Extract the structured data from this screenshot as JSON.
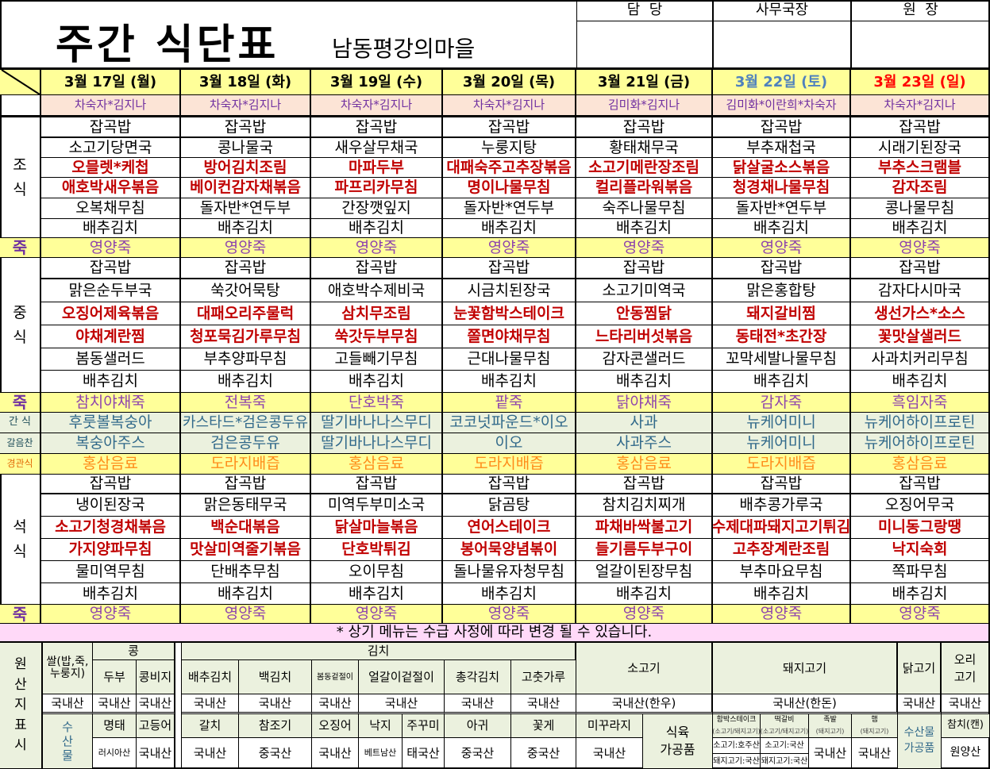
{
  "header": {
    "title": "주간 식단표",
    "subtitle": "남동평강의마을"
  },
  "approval": [
    "담  당",
    "사무국장",
    "원  장"
  ],
  "days": [
    {
      "date": "3월 17일 (월)",
      "staff": "차숙자*김지나"
    },
    {
      "date": "3월 18일 (화)",
      "staff": "차숙자*김지나"
    },
    {
      "date": "3월 19일 (수)",
      "staff": "차숙자*김지나"
    },
    {
      "date": "3월 20일 (목)",
      "staff": "차숙자*김지나"
    },
    {
      "date": "3월 21일 (금)",
      "staff": "김미화*김지나"
    },
    {
      "date": "3월 22일 (토)",
      "staff": "김미화*이란희*차숙자"
    },
    {
      "date": "3월 23일 (일)",
      "staff": "차숙자*김지나"
    }
  ],
  "colors": {
    "saturday": "#4f81bd",
    "sunday": "#ff0000",
    "main_dish": "#c00000",
    "staff": "#7030a0"
  },
  "labels": {
    "breakfast": "조\n식",
    "lunch": "중\n식",
    "dinner": "석\n식",
    "porridge": "죽",
    "snack": "간 식",
    "side": "갈음찬",
    "tube": "경관식"
  },
  "breakfast": [
    [
      "잡곡밥",
      "잡곡밥",
      "잡곡밥",
      "잡곡밥",
      "잡곡밥",
      "잡곡밥",
      "잡곡밥"
    ],
    [
      "소고기당면국",
      "콩나물국",
      "새우살무채국",
      "누룽지탕",
      "황태채무국",
      "부추재첩국",
      "시래기된장국"
    ],
    [
      "오믈렛*케첩",
      "방어김치조림",
      "마파두부",
      "대패숙주고추장볶음",
      "소고기메란장조림",
      "닭살굴소스볶음",
      "부추스크램블"
    ],
    [
      "애호박새우볶음",
      "베이컨감자채볶음",
      "파프리카무침",
      "명이나물무침",
      "컬리플라워볶음",
      "청경채나물무침",
      "감자조림"
    ],
    [
      "오복채무침",
      "돌자반*연두부",
      "간장깻잎지",
      "돌자반*연두부",
      "숙주나물무침",
      "돌자반*연두부",
      "콩나물무침"
    ],
    [
      "배추김치",
      "배추김치",
      "배추김치",
      "배추김치",
      "배추김치",
      "배추김치",
      "배추김치"
    ]
  ],
  "breakfast_porridge": [
    "영양죽",
    "영양죽",
    "영양죽",
    "영양죽",
    "영양죽",
    "영양죽",
    "영양죽"
  ],
  "lunch": [
    [
      "잡곡밥",
      "잡곡밥",
      "잡곡밥",
      "잡곡밥",
      "잡곡밥",
      "잡곡밥",
      "잡곡밥"
    ],
    [
      "맑은순두부국",
      "쑥갓어묵탕",
      "애호박수제비국",
      "시금치된장국",
      "소고기미역국",
      "맑은홍합탕",
      "감자다시마국"
    ],
    [
      "오징어제육볶음",
      "대패오리주물럭",
      "삼치무조림",
      "눈꽃함박스테이크",
      "안동찜닭",
      "돼지갈비찜",
      "생선가스*소스"
    ],
    [
      "야채계란찜",
      "청포묵김가루무침",
      "쑥갓두부무침",
      "쫄면야채무침",
      "느타리버섯볶음",
      "동태전*초간장",
      "꽃맛살샐러드"
    ],
    [
      "봄동샐러드",
      "부추양파무침",
      "고들빼기무침",
      "근대나물무침",
      "감자콘샐러드",
      "꼬막세발나물무침",
      "사과치커리무침"
    ],
    [
      "배추김치",
      "배추김치",
      "배추김치",
      "배추김치",
      "배추김치",
      "배추김치",
      "배추김치"
    ]
  ],
  "lunch_porridge": [
    "참치야채죽",
    "전복죽",
    "단호박죽",
    "팥죽",
    "닭야채죽",
    "감자죽",
    "흑임자죽"
  ],
  "snack": [
    "후룻볼복숭아",
    "카스타드*검은콩두유",
    "딸기바나나스무디",
    "코코넛파운드*이오",
    "사과",
    "뉴케어미니",
    "뉴케어하이프로틴"
  ],
  "side": [
    "복숭아주스",
    "검은콩두유",
    "딸기바나나스무디",
    "이오",
    "사과주스",
    "뉴케어미니",
    "뉴케어하이프로틴"
  ],
  "tube": [
    "홍삼음료",
    "도라지배즙",
    "홍삼음료",
    "도라지배즙",
    "홍삼음료",
    "도라지배즙",
    "홍삼음료"
  ],
  "dinner": [
    [
      "잡곡밥",
      "잡곡밥",
      "잡곡밥",
      "잡곡밥",
      "잡곡밥",
      "잡곡밥",
      "잡곡밥"
    ],
    [
      "냉이된장국",
      "맑은동태무국",
      "미역두부미소국",
      "닭곰탕",
      "참치김치찌개",
      "배추콩가루국",
      "오징어무국"
    ],
    [
      "소고기청경채볶음",
      "백순대볶음",
      "닭살마늘볶음",
      "연어스테이크",
      "파채바싹불고기",
      "수제대파돼지고기튀김",
      "미니동그랑땡"
    ],
    [
      "가지양파무침",
      "맛살미역줄기볶음",
      "단호박튀김",
      "봉어묵양념볶이",
      "들기름두부구이",
      "고추장계란조림",
      "낙지숙회"
    ],
    [
      "물미역무침",
      "단배추무침",
      "오이무침",
      "돌나물유자청무침",
      "얼갈이된장무침",
      "부추마요무침",
      "쪽파무침"
    ],
    [
      "배추김치",
      "배추김치",
      "배추김치",
      "배추김치",
      "배추김치",
      "배추김치",
      "배추김치"
    ]
  ],
  "dinner_porridge": [
    "영양죽",
    "영양죽",
    "영양죽",
    "영양죽",
    "영양죽",
    "영양죽",
    "영양죽"
  ],
  "note": "* 상기 메뉴는 수급 사정에 따라 변경 될 수 있습니다.",
  "origin": {
    "title": "원\n산\n지\n표\n시",
    "rice": {
      "label": "쌀(밥,죽,\n누룽지)",
      "value": "국내산"
    },
    "bean_group": "콩",
    "kimchi_group": "김치",
    "items_top": [
      {
        "label": "두부",
        "value": "국내산"
      },
      {
        "label": "콩비지",
        "value": "국내산"
      },
      {
        "label": "배추김치",
        "value": "국내산"
      },
      {
        "label": "백김치",
        "value": "국내산"
      },
      {
        "label": "봄동겉절이",
        "value": "국내산"
      },
      {
        "label": "얼갈이겉절이",
        "value": "국내산"
      },
      {
        "label": "총각김치",
        "value": "국내산"
      },
      {
        "label": "고춧가루",
        "value": "국내산"
      },
      {
        "label": "소고기",
        "value": "국내산(한우)"
      },
      {
        "label": "돼지고기",
        "value": "국내산(한돈)"
      },
      {
        "label": "닭고기",
        "value": "국내산"
      },
      {
        "label": "오리\n고기",
        "value": "국내산"
      }
    ],
    "seafood_label": "수\n산\n물",
    "items_bottom": [
      {
        "label": "명태",
        "value": "러시아산"
      },
      {
        "label": "고등어",
        "value": "국내산"
      },
      {
        "label": "갈치",
        "value": "국내산"
      },
      {
        "label": "참조기",
        "value": "중국산"
      },
      {
        "label": "오징어",
        "value": "국내산"
      },
      {
        "label": "낙지",
        "value": "베트남산"
      },
      {
        "label": "주꾸미",
        "value": "태국산"
      },
      {
        "label": "아귀",
        "value": "중국산"
      },
      {
        "label": "꽃게",
        "value": "중국산"
      },
      {
        "label": "미꾸라지",
        "value": "국내산"
      }
    ],
    "processed_meat_label": "식육\n가공품",
    "processed_meat": [
      {
        "label": "함박스테이크",
        "sub": "(소고기/돼지고기)",
        "values": [
          "소고기:호주산",
          "돼지고기:국산"
        ]
      },
      {
        "label": "떡갈비",
        "sub": "(소고기/돼지고기)",
        "values": [
          "소고기:국산",
          "돼지고기:국산"
        ]
      },
      {
        "label": "족발",
        "sub": "(돼지고기)",
        "values": [
          "국내산"
        ]
      },
      {
        "label": "햄",
        "sub": "(돼지고기)",
        "values": [
          "국내산"
        ]
      }
    ],
    "processed_seafood_label": "수산물\n가공품",
    "tuna": {
      "label": "참치(캔)",
      "value": "원양산"
    }
  }
}
